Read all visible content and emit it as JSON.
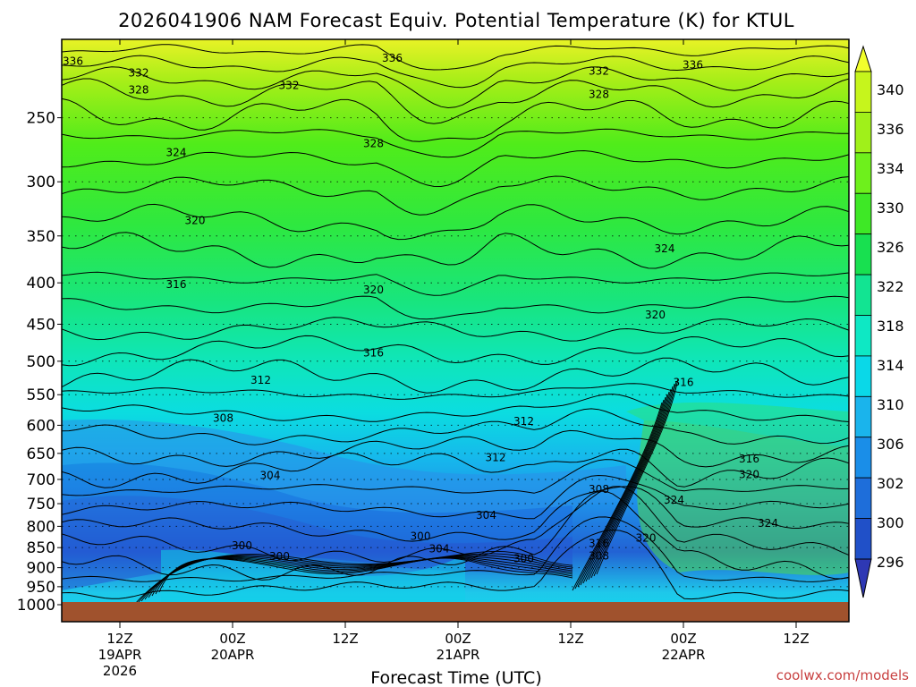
{
  "chart_data": {
    "type": "heatmap",
    "title": "2026041906 NAM Forecast Equiv. Potential Temperature (K) for KTUL",
    "xlabel": "Forecast Time (UTC)",
    "ylabel": "",
    "y_scale": "log-pressure",
    "y_ticks": [
      1000,
      950,
      900,
      850,
      800,
      750,
      700,
      650,
      600,
      550,
      500,
      450,
      400,
      350,
      300,
      250
    ],
    "ylim": [
      1000,
      200
    ],
    "x_ticks": [
      {
        "time": "12Z",
        "date": "19APR",
        "year": "2026"
      },
      {
        "time": "00Z",
        "date": "20APR",
        "year": ""
      },
      {
        "time": "12Z",
        "date": "",
        "year": ""
      },
      {
        "time": "00Z",
        "date": "21APR",
        "year": ""
      },
      {
        "time": "12Z",
        "date": "",
        "year": ""
      },
      {
        "time": "00Z",
        "date": "22APR",
        "year": ""
      },
      {
        "time": "12Z",
        "date": "",
        "year": ""
      }
    ],
    "grid": "dotted horizontal at pressure levels",
    "colorbar": {
      "labels": [
        340,
        336,
        334,
        330,
        326,
        322,
        318,
        314,
        310,
        306,
        302,
        300,
        296
      ],
      "colors": [
        "#f2ff2c",
        "#c6f51c",
        "#a0f01a",
        "#6ef01c",
        "#3ee826",
        "#18e050",
        "#12e492",
        "#0ee8c4",
        "#0ad8e8",
        "#1ab4ec",
        "#1a8ee8",
        "#1e6eda",
        "#2050c8",
        "#2e38b4"
      ]
    },
    "contour_labels": [
      {
        "value": 336,
        "time": "19/07Z",
        "p": 213
      },
      {
        "value": 336,
        "time": "20/17Z",
        "p": 211
      },
      {
        "value": 336,
        "time": "22/01Z",
        "p": 215
      },
      {
        "value": 332,
        "time": "19/14Z",
        "p": 220
      },
      {
        "value": 332,
        "time": "20/06Z",
        "p": 228
      },
      {
        "value": 332,
        "time": "21/15Z",
        "p": 219
      },
      {
        "value": 328,
        "time": "19/14Z",
        "p": 231
      },
      {
        "value": 328,
        "time": "20/15Z",
        "p": 269
      },
      {
        "value": 328,
        "time": "21/15Z",
        "p": 234
      },
      {
        "value": 324,
        "time": "19/18Z",
        "p": 276
      },
      {
        "value": 324,
        "time": "21/22Z",
        "p": 363
      },
      {
        "value": 320,
        "time": "19/20Z",
        "p": 335
      },
      {
        "value": 320,
        "time": "20/15Z",
        "p": 408
      },
      {
        "value": 320,
        "time": "21/21Z",
        "p": 438
      },
      {
        "value": 316,
        "time": "19/18Z",
        "p": 402
      },
      {
        "value": 316,
        "time": "20/15Z",
        "p": 488
      },
      {
        "value": 316,
        "time": "22/00Z",
        "p": 531
      },
      {
        "value": 312,
        "time": "20/03Z",
        "p": 528
      },
      {
        "value": 312,
        "time": "21/07Z",
        "p": 593
      },
      {
        "value": 312,
        "time": "21/04Z",
        "p": 658
      },
      {
        "value": 308,
        "time": "19/23Z",
        "p": 588
      },
      {
        "value": 308,
        "time": "21/15Z",
        "p": 720
      },
      {
        "value": 308,
        "time": "21/15Z",
        "p": 870
      },
      {
        "value": 304,
        "time": "20/04Z",
        "p": 692
      },
      {
        "value": 304,
        "time": "21/03Z",
        "p": 775
      },
      {
        "value": 304,
        "time": "20/22Z",
        "p": 853
      },
      {
        "value": 300,
        "time": "20/01Z",
        "p": 845
      },
      {
        "value": 300,
        "time": "20/05Z",
        "p": 872
      },
      {
        "value": 300,
        "time": "20/20Z",
        "p": 823
      },
      {
        "value": 300,
        "time": "21/07Z",
        "p": 877
      },
      {
        "value": 316,
        "time": "21/15Z",
        "p": 840
      },
      {
        "value": 316,
        "time": "22/07Z",
        "p": 660
      },
      {
        "value": 320,
        "time": "21/20Z",
        "p": 827
      },
      {
        "value": 320,
        "time": "22/07Z",
        "p": 690
      },
      {
        "value": 324,
        "time": "21/23Z",
        "p": 742
      },
      {
        "value": 324,
        "time": "22/09Z",
        "p": 793
      }
    ],
    "surface": "brown ground strip at 1000 hPa"
  },
  "credit": "coolwx.com/models"
}
